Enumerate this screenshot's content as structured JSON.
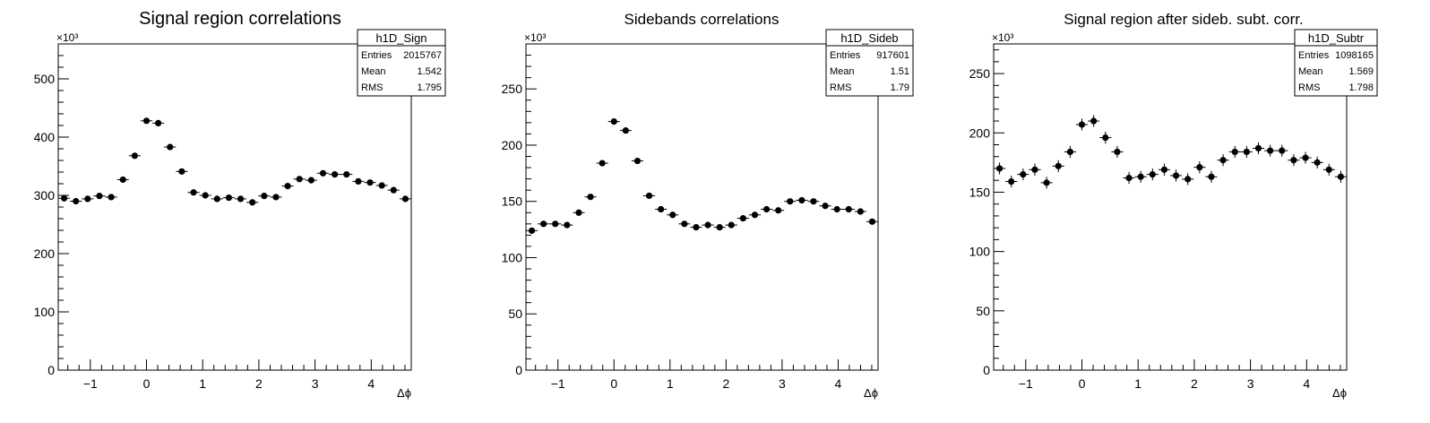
{
  "chart_data": [
    {
      "type": "scatter",
      "title": "Signal region correlations",
      "xlabel": "Δϕ",
      "ylabel": "",
      "y_multiplier": "×10³",
      "xlim": [
        -1.5708,
        4.7124
      ],
      "ylim": [
        0,
        560
      ],
      "xticks": [
        -1,
        0,
        1,
        2,
        3,
        4
      ],
      "yticks": [
        0,
        100,
        200,
        300,
        400,
        500
      ],
      "grid": false,
      "stats": {
        "name": "h1D_Sign",
        "entries": "2015767",
        "mean": "1.542",
        "rms": "1.795"
      },
      "x": [
        -1.4661,
        -1.2566,
        -1.0472,
        -0.8378,
        -0.6283,
        -0.4189,
        -0.2094,
        0.0,
        0.2094,
        0.4189,
        0.6283,
        0.8378,
        1.0472,
        1.2566,
        1.4661,
        1.6755,
        1.885,
        2.0944,
        2.3038,
        2.5133,
        2.7227,
        2.9322,
        3.1416,
        3.351,
        3.5605,
        3.7699,
        3.9794,
        4.1888,
        4.3982,
        4.6077
      ],
      "values": [
        295,
        290,
        294,
        299,
        297,
        327,
        368,
        428,
        424,
        383,
        341,
        305,
        300,
        294,
        296,
        294,
        288,
        299,
        297,
        316,
        328,
        326,
        338,
        336,
        336,
        324,
        322,
        317,
        309,
        294
      ],
      "yerr": [
        2,
        2,
        2,
        2,
        2,
        2,
        2,
        2,
        2,
        2,
        2,
        2,
        2,
        2,
        2,
        2,
        2,
        2,
        2,
        2,
        2,
        2,
        2,
        2,
        2,
        2,
        2,
        2,
        2,
        2
      ]
    },
    {
      "type": "scatter",
      "title": "Sidebands correlations",
      "xlabel": "Δϕ",
      "ylabel": "",
      "y_multiplier": "×10³",
      "xlim": [
        -1.5708,
        4.7124
      ],
      "ylim": [
        0,
        290
      ],
      "xticks": [
        -1,
        0,
        1,
        2,
        3,
        4
      ],
      "yticks": [
        0,
        50,
        100,
        150,
        200,
        250
      ],
      "grid": false,
      "stats": {
        "name": "h1D_Sideb",
        "entries": "917601",
        "mean": "1.51",
        "rms": "1.79"
      },
      "x": [
        -1.4661,
        -1.2566,
        -1.0472,
        -0.8378,
        -0.6283,
        -0.4189,
        -0.2094,
        0.0,
        0.2094,
        0.4189,
        0.6283,
        0.8378,
        1.0472,
        1.2566,
        1.4661,
        1.6755,
        1.885,
        2.0944,
        2.3038,
        2.5133,
        2.7227,
        2.9322,
        3.1416,
        3.351,
        3.5605,
        3.7699,
        3.9794,
        4.1888,
        4.3982,
        4.6077
      ],
      "values": [
        124,
        130,
        130,
        129,
        140,
        154,
        184,
        221,
        213,
        186,
        155,
        143,
        138,
        130,
        127,
        129,
        127,
        129,
        135,
        138,
        143,
        142,
        150,
        151,
        150,
        146,
        143,
        143,
        141,
        132
      ],
      "yerr": [
        1.5,
        1.5,
        1.5,
        1.5,
        1.5,
        1.5,
        1.5,
        1.5,
        1.5,
        1.5,
        1.5,
        1.5,
        1.5,
        1.5,
        1.5,
        1.5,
        1.5,
        1.5,
        1.5,
        1.5,
        1.5,
        1.5,
        1.5,
        1.5,
        1.5,
        1.5,
        1.5,
        1.5,
        1.5,
        1.5
      ]
    },
    {
      "type": "scatter",
      "title": "Signal region after sideb. subt. corr.",
      "xlabel": "Δϕ",
      "ylabel": "",
      "y_multiplier": "×10³",
      "xlim": [
        -1.5708,
        4.7124
      ],
      "ylim": [
        0,
        275
      ],
      "xticks": [
        -1,
        0,
        1,
        2,
        3,
        4
      ],
      "yticks": [
        0,
        50,
        100,
        150,
        200,
        250
      ],
      "grid": false,
      "stats": {
        "name": "h1D_Subtr",
        "entries": "1098165",
        "mean": "1.569",
        "rms": "1.798"
      },
      "x": [
        -1.4661,
        -1.2566,
        -1.0472,
        -0.8378,
        -0.6283,
        -0.4189,
        -0.2094,
        0.0,
        0.2094,
        0.4189,
        0.6283,
        0.8378,
        1.0472,
        1.2566,
        1.4661,
        1.6755,
        1.885,
        2.0944,
        2.3038,
        2.5133,
        2.7227,
        2.9322,
        3.1416,
        3.351,
        3.5605,
        3.7699,
        3.9794,
        4.1888,
        4.3982,
        4.6077
      ],
      "values": [
        170,
        159,
        165,
        169,
        158,
        172,
        184,
        207,
        210,
        196,
        184,
        162,
        163,
        165,
        169,
        164,
        161,
        171,
        163,
        177,
        184,
        184,
        187,
        185,
        185,
        177,
        179,
        175,
        169,
        163
      ],
      "yerr": [
        5,
        5,
        5,
        5,
        5,
        5,
        5,
        5,
        5,
        5,
        5,
        5,
        5,
        5,
        5,
        5,
        5,
        5,
        5,
        5,
        5,
        5,
        5,
        5,
        5,
        5,
        5,
        5,
        5,
        5
      ]
    }
  ],
  "stat_labels": {
    "entries": "Entries",
    "mean": "Mean",
    "rms": "RMS"
  }
}
